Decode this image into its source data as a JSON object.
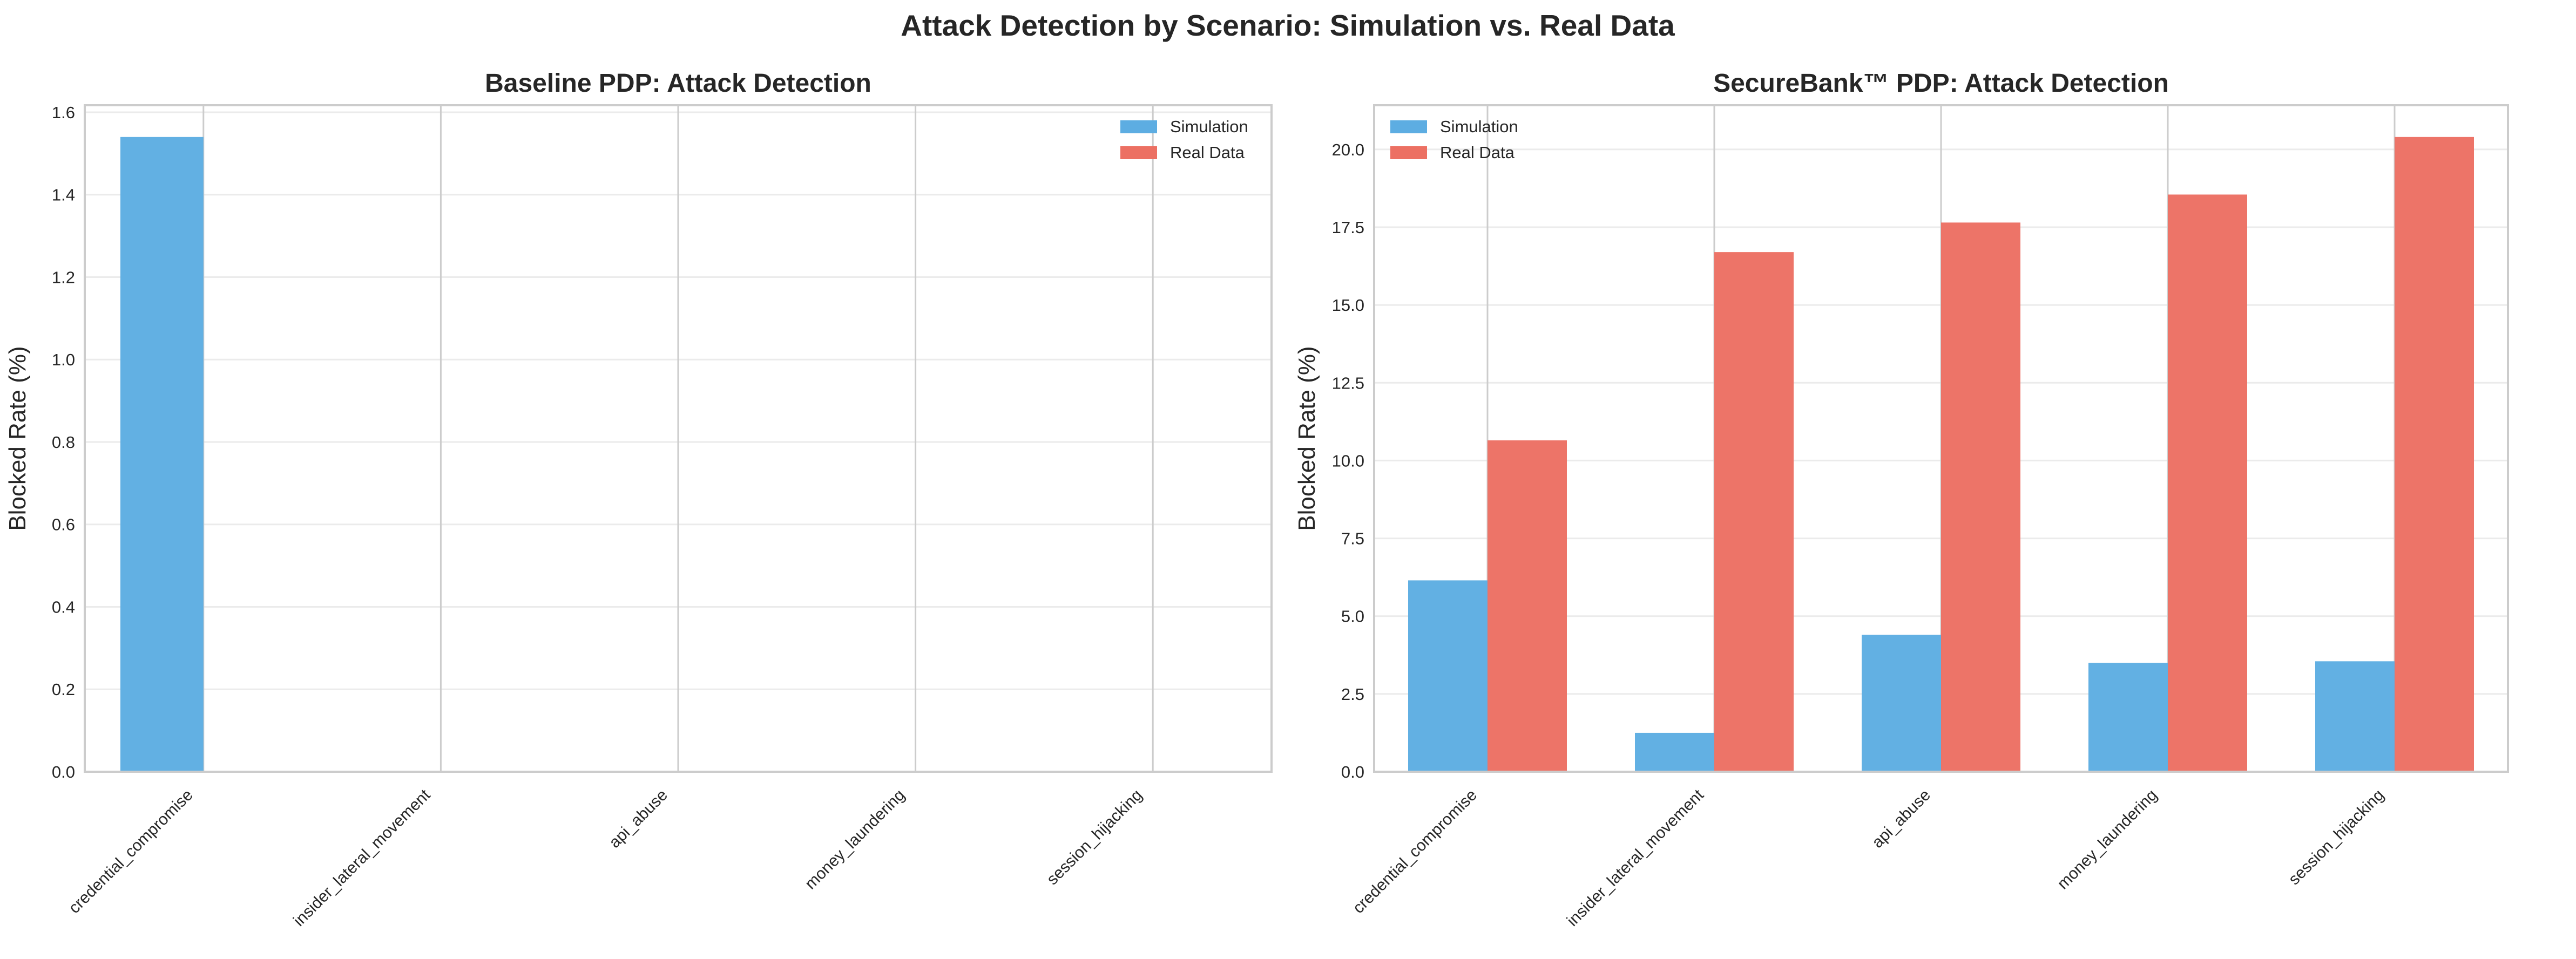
{
  "figure": {
    "title": "Attack Detection by Scenario: Simulation vs. Real Data"
  },
  "colors": {
    "simulation": "#5DADE2",
    "real_data": "#EC7063",
    "grid": "#EBEBEB",
    "spine": "#CCCCCC"
  },
  "chart_data": [
    {
      "type": "bar",
      "title": "Baseline PDP: Attack Detection",
      "xlabel": "",
      "ylabel": "Blocked Rate (%)",
      "categories": [
        "credential_compromise",
        "insider_lateral_movement",
        "api_abuse",
        "money_laundering",
        "session_hijacking"
      ],
      "series": [
        {
          "name": "Simulation",
          "values": [
            1.54,
            0.0,
            0.0,
            0.0,
            0.0
          ]
        },
        {
          "name": "Real Data",
          "values": [
            0.0,
            0.0,
            0.0,
            0.0,
            0.0
          ]
        }
      ],
      "ylim": [
        0,
        1.617
      ],
      "yticks": [
        "0.0",
        "0.2",
        "0.4",
        "0.6",
        "0.8",
        "1.0",
        "1.2",
        "1.4",
        "1.6"
      ],
      "ytick_values": [
        0,
        0.2,
        0.4,
        0.6,
        0.8,
        1.0,
        1.2,
        1.4,
        1.6
      ],
      "legend": "top-right",
      "grid": true
    },
    {
      "type": "bar",
      "title": "SecureBank™ PDP: Attack Detection",
      "xlabel": "",
      "ylabel": "Blocked Rate (%)",
      "categories": [
        "credential_compromise",
        "insider_lateral_movement",
        "api_abuse",
        "money_laundering",
        "session_hijacking"
      ],
      "series": [
        {
          "name": "Simulation",
          "values": [
            6.15,
            1.25,
            4.4,
            3.5,
            3.55
          ]
        },
        {
          "name": "Real Data",
          "values": [
            10.65,
            16.7,
            17.65,
            18.55,
            20.4
          ]
        }
      ],
      "ylim": [
        0,
        21.42
      ],
      "yticks": [
        "0.0",
        "2.5",
        "5.0",
        "7.5",
        "10.0",
        "12.5",
        "15.0",
        "17.5",
        "20.0"
      ],
      "ytick_values": [
        0,
        2.5,
        5.0,
        7.5,
        10.0,
        12.5,
        15.0,
        17.5,
        20.0
      ],
      "legend": "top-left",
      "grid": true
    }
  ]
}
